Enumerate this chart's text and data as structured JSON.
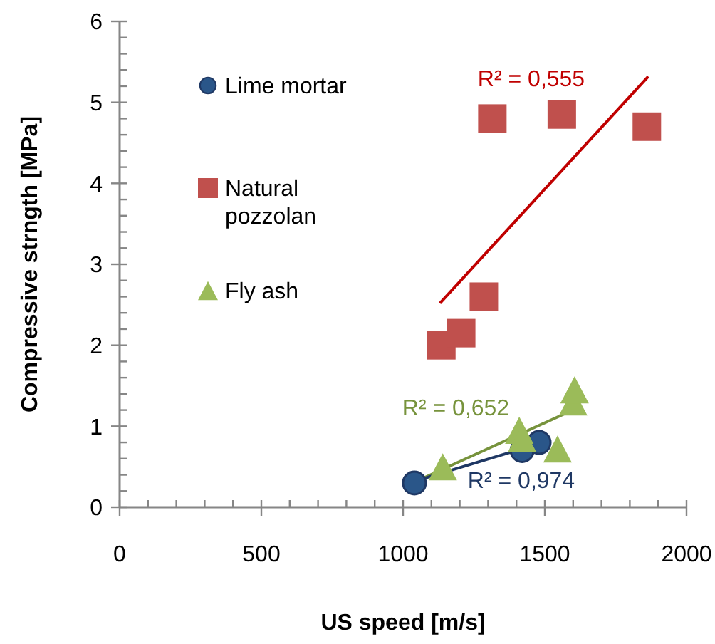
{
  "chart_data": {
    "type": "scatter",
    "xlabel": "US speed [m/s]",
    "ylabel": "Compressive strngth [MPa]",
    "xlim": [
      0,
      2000
    ],
    "ylim": [
      0,
      6
    ],
    "xticks": [
      0,
      {
        "value": 100,
        "label": null
      },
      {
        "value": 200,
        "label": null
      },
      {
        "value": 300,
        "label": null
      },
      {
        "value": 400,
        "label": null
      },
      500,
      {
        "value": 600,
        "label": null
      },
      {
        "value": 700,
        "label": null
      },
      {
        "value": 800,
        "label": null
      },
      {
        "value": 900,
        "label": null
      },
      1000,
      {
        "value": 1100,
        "label": null
      },
      {
        "value": 1200,
        "label": null
      },
      {
        "value": 1300,
        "label": null
      },
      {
        "value": 1400,
        "label": null
      },
      1500,
      {
        "value": 1600,
        "label": null
      },
      {
        "value": 1700,
        "label": null
      },
      {
        "value": 1800,
        "label": null
      },
      {
        "value": 1900,
        "label": null
      },
      2000
    ],
    "yticks": [
      0,
      {
        "value": 0.2,
        "label": null
      },
      {
        "value": 0.4,
        "label": null
      },
      {
        "value": 0.6,
        "label": null
      },
      {
        "value": 0.8,
        "label": null
      },
      1,
      {
        "value": 1.2,
        "label": null
      },
      {
        "value": 1.4,
        "label": null
      },
      {
        "value": 1.6,
        "label": null
      },
      {
        "value": 1.8,
        "label": null
      },
      2,
      {
        "value": 2.2,
        "label": null
      },
      {
        "value": 2.4,
        "label": null
      },
      {
        "value": 2.6,
        "label": null
      },
      {
        "value": 2.8,
        "label": null
      },
      3,
      {
        "value": 3.2,
        "label": null
      },
      {
        "value": 3.4,
        "label": null
      },
      {
        "value": 3.6,
        "label": null
      },
      {
        "value": 3.8,
        "label": null
      },
      4,
      {
        "value": 4.2,
        "label": null
      },
      {
        "value": 4.4,
        "label": null
      },
      {
        "value": 4.6,
        "label": null
      },
      {
        "value": 4.8,
        "label": null
      },
      5,
      {
        "value": 5.2,
        "label": null
      },
      {
        "value": 5.4,
        "label": null
      },
      {
        "value": 5.6,
        "label": null
      },
      {
        "value": 5.8,
        "label": null
      },
      6
    ],
    "grid": false,
    "legend": "top left",
    "series": [
      {
        "name": "Lime mortar",
        "marker": "circle",
        "color": "#2a5689",
        "x": [
          1040,
          1420,
          1480
        ],
        "values": [
          0.3,
          0.7,
          0.8
        ]
      },
      {
        "name": "Natural pozzolan",
        "marker": "square",
        "color": "#c0504d",
        "x": [
          1135,
          1205,
          1285,
          1315,
          1560,
          1860
        ],
        "values": [
          2.0,
          2.15,
          2.6,
          4.8,
          4.85,
          4.7
        ]
      },
      {
        "name": "Fly ash",
        "marker": "triangle",
        "color": "#9bbb59",
        "x": [
          1140,
          1410,
          1420,
          1545,
          1600,
          1605
        ],
        "values": [
          0.5,
          0.95,
          0.85,
          0.72,
          1.3,
          1.45
        ]
      },
      {
        "type": "line",
        "color": "#c00000",
        "x": [
          1130,
          1865
        ],
        "values": [
          2.52,
          5.32
        ]
      },
      {
        "type": "line",
        "color": "#77933c",
        "x": [
          1065,
          1605
        ],
        "values": [
          0.35,
          1.21
        ]
      },
      {
        "type": "line",
        "color": "#1f3864",
        "x": [
          1040,
          1485
        ],
        "values": [
          0.32,
          0.79
        ]
      }
    ],
    "annotations": [
      "R² = 0,555",
      "R² = 0,652",
      "R² = 0,974"
    ]
  }
}
